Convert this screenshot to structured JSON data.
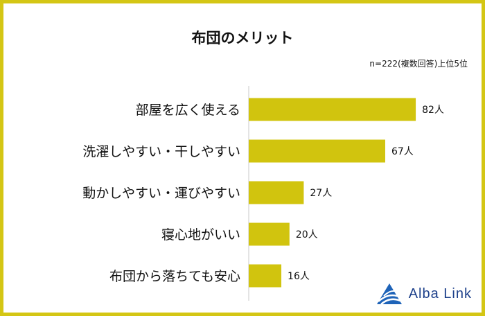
{
  "chart_data": {
    "type": "bar",
    "orientation": "horizontal",
    "title": "布団のメリット",
    "note": "n=222(複数回答)上位5位",
    "categories": [
      "部屋を広く使える",
      "洗濯しやすい・干しやすい",
      "動かしやすい・運びやすい",
      "寝心地がいい",
      "布団から落ちても安心"
    ],
    "values": [
      82,
      67,
      27,
      20,
      16
    ],
    "value_labels": [
      "82人",
      "67人",
      "27人",
      "20人",
      "16人"
    ],
    "xlim": [
      0,
      100
    ],
    "grid": false,
    "legend": "none",
    "bar_color": "#d1c40e",
    "frame_color": "#d4c614"
  },
  "logo": {
    "text": "Alba Link",
    "icon": "alba-link-logo-icon",
    "color": "#1c3f8a"
  }
}
